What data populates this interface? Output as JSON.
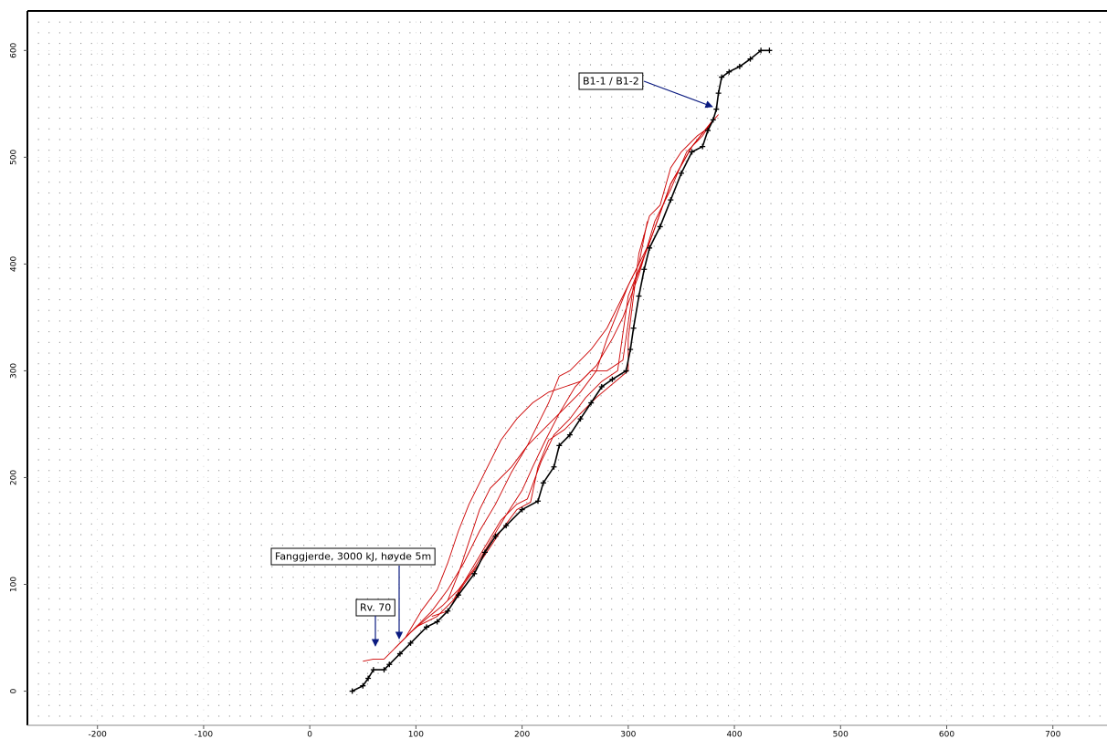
{
  "chart_data": {
    "type": "line",
    "xlim": [
      -266,
      751
    ],
    "ylim": [
      -32,
      637
    ],
    "xticks": [
      -200,
      -100,
      0,
      100,
      200,
      300,
      400,
      500,
      600,
      700
    ],
    "yticks": [
      0,
      100,
      200,
      300,
      400,
      500,
      600
    ],
    "grid": true,
    "annotations": [
      "B1-1 / B1-2",
      "Fanggjerde, 3000 kJ, høyde 5m",
      "Rv. 70"
    ],
    "series": [
      {
        "color": "#cc0000",
        "x": [
          380,
          370,
          355,
          340,
          325,
          310,
          295,
          285,
          270,
          255,
          240,
          225,
          210,
          195,
          180,
          165,
          150,
          140,
          130,
          120,
          105,
          90
        ],
        "y": [
          535,
          520,
          505,
          470,
          440,
          390,
          350,
          330,
          305,
          290,
          285,
          280,
          270,
          255,
          235,
          205,
          175,
          150,
          120,
          95,
          75,
          50
        ]
      },
      {
        "color": "#cc0000",
        "x": [
          380,
          360,
          340,
          320,
          300,
          290,
          280,
          270,
          255,
          240,
          225,
          205,
          190,
          175,
          160,
          145,
          130,
          115,
          100,
          85
        ],
        "y": [
          535,
          510,
          475,
          420,
          380,
          355,
          330,
          300,
          280,
          265,
          250,
          230,
          205,
          175,
          150,
          120,
          95,
          75,
          60,
          45
        ]
      },
      {
        "color": "#cc0000",
        "x": [
          380,
          360,
          340,
          320,
          305,
          295,
          280,
          265,
          250,
          235,
          222,
          210,
          200,
          185,
          170,
          155,
          140,
          125,
          110,
          95,
          80
        ],
        "y": [
          535,
          510,
          475,
          420,
          380,
          310,
          300,
          300,
          285,
          260,
          235,
          210,
          188,
          165,
          140,
          115,
          95,
          80,
          68,
          55,
          40
        ]
      },
      {
        "color": "#cc0000",
        "x": [
          380,
          360,
          340,
          320,
          300,
          290,
          275,
          260,
          245,
          230,
          218,
          205,
          195,
          180,
          165,
          150,
          135,
          120,
          100,
          85,
          70,
          60,
          50
        ],
        "y": [
          535,
          510,
          475,
          420,
          370,
          300,
          290,
          275,
          255,
          240,
          215,
          180,
          175,
          160,
          135,
          110,
          85,
          70,
          60,
          45,
          30,
          30,
          28
        ]
      },
      {
        "color": "#cc0000",
        "x": [
          385,
          372,
          365,
          350,
          340,
          330,
          320,
          310,
          300,
          300,
          270,
          240,
          225,
          215,
          208,
          195,
          180,
          160,
          145,
          130,
          115
        ],
        "y": [
          540,
          525,
          520,
          505,
          490,
          455,
          445,
          410,
          330,
          300,
          275,
          245,
          235,
          210,
          177,
          170,
          150,
          120,
          100,
          75,
          70
        ]
      },
      {
        "color": "#cc0000",
        "x": [
          318,
          310,
          295,
          280,
          265,
          245,
          235,
          225,
          215,
          205,
          190,
          180,
          170,
          160,
          150,
          140,
          130
        ],
        "y": [
          440,
          400,
          370,
          340,
          320,
          300,
          295,
          270,
          250,
          230,
          210,
          200,
          190,
          170,
          140,
          110,
          85
        ]
      },
      {
        "color": "#000000",
        "marker": "+",
        "x": [
          40,
          50,
          55,
          60,
          70,
          75,
          85,
          95,
          110,
          120,
          130,
          140,
          155,
          165,
          175,
          185,
          200,
          215,
          220,
          230,
          235,
          245,
          255,
          265,
          275,
          285,
          298,
          302,
          305,
          310,
          315,
          320,
          330,
          340,
          350,
          360,
          370,
          375,
          380,
          383,
          385,
          388,
          395,
          405,
          415,
          425,
          433
        ],
        "y": [
          0,
          5,
          12,
          20,
          20,
          25,
          35,
          45,
          60,
          65,
          75,
          90,
          110,
          130,
          145,
          155,
          170,
          178,
          195,
          210,
          230,
          240,
          255,
          270,
          285,
          292,
          300,
          320,
          340,
          370,
          395,
          415,
          435,
          460,
          485,
          505,
          510,
          525,
          535,
          545,
          560,
          575,
          580,
          585,
          592,
          600,
          600
        ]
      }
    ]
  }
}
